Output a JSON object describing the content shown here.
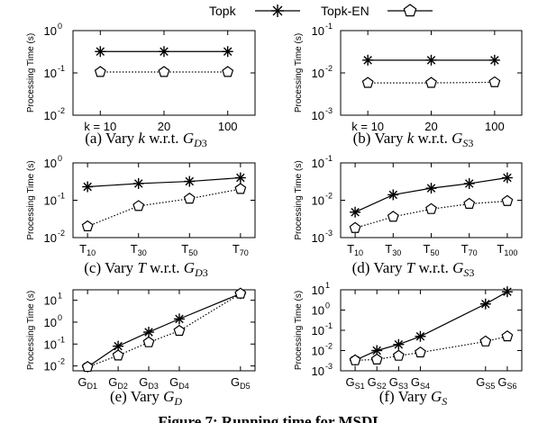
{
  "legend": {
    "entries": [
      {
        "label": "Topk",
        "marker": "asterisk",
        "line": "solid"
      },
      {
        "label": "Topk-EN",
        "marker": "pentagon",
        "line": "solid"
      }
    ]
  },
  "figure_caption": "Figure 7: Running time for MSDL",
  "colors": {
    "ink": "#000000",
    "background": "#ffffff"
  },
  "chart_data": [
    {
      "id": "a",
      "type": "line",
      "caption": "(a) Vary k w.r.t. G_D3",
      "caption_parts": {
        "prefix": "(a) Vary ",
        "var": "k",
        "mid": " w.r.t. ",
        "G": "G",
        "sub": "D",
        "suffix": "3"
      },
      "ylabel": "Processing Time (s)",
      "yscale": "log",
      "ylim": [
        0.01,
        1
      ],
      "yticks": [
        {
          "e": 0,
          "label": "10"
        },
        {
          "e": -1,
          "label": "10"
        },
        {
          "e": -2,
          "label": "10"
        }
      ],
      "categories": [
        {
          "main": "k = 10"
        },
        {
          "main": "20"
        },
        {
          "main": "100"
        }
      ],
      "series": [
        {
          "name": "Topk",
          "marker": "asterisk",
          "values": [
            0.32,
            0.32,
            0.32
          ]
        },
        {
          "name": "Topk-EN",
          "marker": "pentagon",
          "values": [
            0.105,
            0.105,
            0.105
          ]
        }
      ]
    },
    {
      "id": "b",
      "type": "line",
      "caption": "(b) Vary k w.r.t. G_S3",
      "caption_parts": {
        "prefix": "(b) Vary ",
        "var": "k",
        "mid": " w.r.t. ",
        "G": "G",
        "sub": "S",
        "suffix": "3"
      },
      "ylabel": "Processing Time (s)",
      "yscale": "log",
      "ylim": [
        0.001,
        0.1
      ],
      "yticks": [
        {
          "e": -1,
          "label": "10"
        },
        {
          "e": -2,
          "label": "10"
        },
        {
          "e": -3,
          "label": "10"
        }
      ],
      "categories": [
        {
          "main": "k = 10"
        },
        {
          "main": "20"
        },
        {
          "main": "100"
        }
      ],
      "series": [
        {
          "name": "Topk",
          "marker": "asterisk",
          "values": [
            0.02,
            0.02,
            0.02
          ]
        },
        {
          "name": "Topk-EN",
          "marker": "pentagon",
          "values": [
            0.0058,
            0.0058,
            0.006
          ]
        }
      ]
    },
    {
      "id": "c",
      "type": "line",
      "caption": "(c) Vary T w.r.t. G_D3",
      "caption_parts": {
        "prefix": "(c) Vary ",
        "var": "T",
        "mid": " w.r.t. ",
        "G": "G",
        "sub": "D",
        "suffix": "3"
      },
      "ylabel": "Processing Time (s)",
      "yscale": "log",
      "ylim": [
        0.01,
        1
      ],
      "yticks": [
        {
          "e": 0,
          "label": "10"
        },
        {
          "e": -1,
          "label": "10"
        },
        {
          "e": -2,
          "label": "10"
        }
      ],
      "categories": [
        {
          "main": "T",
          "sub": "10"
        },
        {
          "main": "T",
          "sub": "30"
        },
        {
          "main": "T",
          "sub": "50"
        },
        {
          "main": "T",
          "sub": "70"
        }
      ],
      "series": [
        {
          "name": "Topk",
          "marker": "asterisk",
          "values": [
            0.23,
            0.28,
            0.32,
            0.4
          ]
        },
        {
          "name": "Topk-EN",
          "marker": "pentagon",
          "values": [
            0.02,
            0.07,
            0.11,
            0.2
          ]
        }
      ]
    },
    {
      "id": "d",
      "type": "line",
      "caption": "(d) Vary T w.r.t. G_S3",
      "caption_parts": {
        "prefix": "(d) Vary ",
        "var": "T",
        "mid": " w.r.t. ",
        "G": "G",
        "sub": "S",
        "suffix": "3"
      },
      "ylabel": "Processing Time (s)",
      "yscale": "log",
      "ylim": [
        0.001,
        0.1
      ],
      "yticks": [
        {
          "e": -1,
          "label": "10"
        },
        {
          "e": -2,
          "label": "10"
        },
        {
          "e": -3,
          "label": "10"
        }
      ],
      "categories": [
        {
          "main": "T",
          "sub": "10"
        },
        {
          "main": "T",
          "sub": "30"
        },
        {
          "main": "T",
          "sub": "50"
        },
        {
          "main": "T",
          "sub": "70"
        },
        {
          "main": "T",
          "sub": "100"
        }
      ],
      "series": [
        {
          "name": "Topk",
          "marker": "asterisk",
          "values": [
            0.0048,
            0.014,
            0.021,
            0.028,
            0.04
          ]
        },
        {
          "name": "Topk-EN",
          "marker": "pentagon",
          "values": [
            0.0018,
            0.0036,
            0.0058,
            0.008,
            0.0095
          ]
        }
      ]
    },
    {
      "id": "e",
      "type": "line",
      "caption": "(e) Vary G_D",
      "caption_parts": {
        "prefix": "(e) Vary ",
        "var": "",
        "mid": "",
        "G": "G",
        "sub": "D",
        "suffix": ""
      },
      "ylabel": "Processing Time (s)",
      "yscale": "log",
      "ylim": [
        0.006,
        30
      ],
      "yticks": [
        {
          "e": 1,
          "label": "10"
        },
        {
          "e": 0,
          "label": "10"
        },
        {
          "e": -1,
          "label": "10"
        },
        {
          "e": -2,
          "label": "10"
        }
      ],
      "categories": [
        {
          "main": "G",
          "sub": "D1"
        },
        {
          "main": "G",
          "sub": "D2"
        },
        {
          "main": "G",
          "sub": "D3"
        },
        {
          "main": "G",
          "sub": "D4"
        },
        {
          "main": "G",
          "sub": "D5"
        }
      ],
      "x_positions": [
        0,
        1,
        2,
        3,
        5
      ],
      "series": [
        {
          "name": "Topk",
          "marker": "asterisk",
          "values": [
            0.009,
            0.08,
            0.35,
            1.4,
            20
          ]
        },
        {
          "name": "Topk-EN",
          "marker": "pentagon",
          "values": [
            0.009,
            0.03,
            0.12,
            0.4,
            20
          ]
        }
      ]
    },
    {
      "id": "f",
      "type": "line",
      "caption": "(f) Vary G_S",
      "caption_parts": {
        "prefix": "(f) Vary ",
        "var": "",
        "mid": "",
        "G": "G",
        "sub": "S",
        "suffix": ""
      },
      "ylabel": "Processing Time (s)",
      "yscale": "log",
      "ylim": [
        0.001,
        10
      ],
      "yticks": [
        {
          "e": 1,
          "label": "10"
        },
        {
          "e": 0,
          "label": "10"
        },
        {
          "e": -1,
          "label": "10"
        },
        {
          "e": -2,
          "label": "10"
        },
        {
          "e": -3,
          "label": "10"
        }
      ],
      "categories": [
        {
          "main": "G",
          "sub": "S1"
        },
        {
          "main": "G",
          "sub": "S2"
        },
        {
          "main": "G",
          "sub": "S3"
        },
        {
          "main": "G",
          "sub": "S4"
        },
        {
          "main": "G",
          "sub": "S5"
        },
        {
          "main": "G",
          "sub": "S6"
        }
      ],
      "x_positions": [
        0,
        1,
        2,
        3,
        6,
        7
      ],
      "series": [
        {
          "name": "Topk",
          "marker": "asterisk",
          "values": [
            0.0033,
            0.01,
            0.02,
            0.05,
            2.0,
            8.0
          ]
        },
        {
          "name": "Topk-EN",
          "marker": "pentagon",
          "values": [
            0.0033,
            0.0036,
            0.0055,
            0.008,
            0.028,
            0.05
          ]
        }
      ]
    }
  ]
}
